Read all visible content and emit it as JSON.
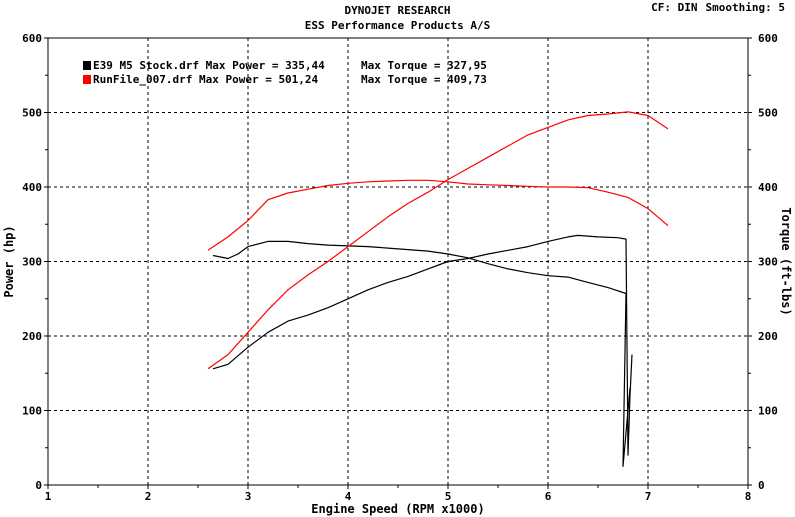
{
  "header": {
    "title": "DYNOJET RESEARCH",
    "subtitle": "ESS Performance Products A/S",
    "cf_label": "CF: DIN",
    "smoothing_label": "Smoothing: 5"
  },
  "legend": {
    "items": [
      {
        "file": "E39 M5 Stock.drf",
        "power_text": "Max Power = 335,44",
        "torque_text": "Max Torque = 327,95",
        "color": "#000000"
      },
      {
        "file": "RunFile_007.drf",
        "power_text": "Max Power = 501,24",
        "torque_text": "Max Torque = 409,73",
        "color": "#ff0000"
      }
    ]
  },
  "chart_data": {
    "type": "line",
    "xlabel": "Engine Speed (RPM x1000)",
    "ylabel_left": "Power (hp)",
    "ylabel_right": "Torque (ft-lbs)",
    "xlim": [
      1,
      8
    ],
    "ylim_left": [
      0,
      600
    ],
    "ylim_right": [
      0,
      600
    ],
    "x_ticks": [
      "1",
      "2",
      "3",
      "4",
      "5",
      "6",
      "7",
      "8"
    ],
    "y_ticks": [
      "0",
      "100",
      "200",
      "300",
      "400",
      "500",
      "600"
    ],
    "grid": true,
    "series": [
      {
        "name": "E39 M5 Stock.drf",
        "measure": "Power",
        "color": "#000000",
        "points": [
          [
            2.65,
            156
          ],
          [
            2.8,
            162
          ],
          [
            3.0,
            185
          ],
          [
            3.2,
            205
          ],
          [
            3.4,
            220
          ],
          [
            3.6,
            228
          ],
          [
            3.8,
            238
          ],
          [
            4.0,
            250
          ],
          [
            4.2,
            262
          ],
          [
            4.4,
            272
          ],
          [
            4.6,
            280
          ],
          [
            4.8,
            290
          ],
          [
            5.0,
            300
          ],
          [
            5.2,
            304
          ],
          [
            5.4,
            310
          ],
          [
            5.6,
            315
          ],
          [
            5.8,
            320
          ],
          [
            6.0,
            327
          ],
          [
            6.2,
            333
          ],
          [
            6.3,
            335
          ],
          [
            6.5,
            333
          ],
          [
            6.7,
            332
          ],
          [
            6.78,
            330
          ],
          [
            6.8,
            40
          ],
          [
            6.82,
            120
          ],
          [
            6.84,
            175
          ]
        ]
      },
      {
        "name": "E39 M5 Stock.drf",
        "measure": "Torque",
        "color": "#000000",
        "points": [
          [
            2.65,
            308
          ],
          [
            2.8,
            304
          ],
          [
            2.9,
            310
          ],
          [
            3.0,
            320
          ],
          [
            3.2,
            327
          ],
          [
            3.4,
            327
          ],
          [
            3.6,
            324
          ],
          [
            3.8,
            322
          ],
          [
            4.0,
            321
          ],
          [
            4.2,
            320
          ],
          [
            4.4,
            318
          ],
          [
            4.6,
            316
          ],
          [
            4.8,
            314
          ],
          [
            5.0,
            310
          ],
          [
            5.2,
            305
          ],
          [
            5.4,
            297
          ],
          [
            5.6,
            290
          ],
          [
            5.8,
            285
          ],
          [
            6.0,
            281
          ],
          [
            6.2,
            279
          ],
          [
            6.4,
            272
          ],
          [
            6.6,
            265
          ],
          [
            6.78,
            257
          ],
          [
            6.75,
            25
          ],
          [
            6.82,
            130
          ]
        ]
      },
      {
        "name": "RunFile_007.drf",
        "measure": "Power",
        "color": "#ff0000",
        "points": [
          [
            2.6,
            156
          ],
          [
            2.8,
            175
          ],
          [
            3.0,
            205
          ],
          [
            3.2,
            235
          ],
          [
            3.4,
            262
          ],
          [
            3.6,
            282
          ],
          [
            3.8,
            300
          ],
          [
            4.0,
            320
          ],
          [
            4.2,
            340
          ],
          [
            4.4,
            360
          ],
          [
            4.6,
            378
          ],
          [
            4.8,
            393
          ],
          [
            5.0,
            410
          ],
          [
            5.2,
            425
          ],
          [
            5.4,
            440
          ],
          [
            5.6,
            455
          ],
          [
            5.8,
            470
          ],
          [
            6.0,
            480
          ],
          [
            6.2,
            490
          ],
          [
            6.4,
            496
          ],
          [
            6.6,
            498
          ],
          [
            6.8,
            501
          ],
          [
            7.0,
            496
          ],
          [
            7.2,
            478
          ]
        ]
      },
      {
        "name": "RunFile_007.drf",
        "measure": "Torque",
        "color": "#ff0000",
        "points": [
          [
            2.6,
            315
          ],
          [
            2.8,
            333
          ],
          [
            3.0,
            355
          ],
          [
            3.2,
            383
          ],
          [
            3.4,
            392
          ],
          [
            3.6,
            397
          ],
          [
            3.8,
            402
          ],
          [
            4.0,
            405
          ],
          [
            4.2,
            407
          ],
          [
            4.4,
            408
          ],
          [
            4.6,
            409
          ],
          [
            4.8,
            409
          ],
          [
            5.0,
            407
          ],
          [
            5.2,
            404
          ],
          [
            5.4,
            403
          ],
          [
            5.6,
            402
          ],
          [
            5.8,
            401
          ],
          [
            6.0,
            400
          ],
          [
            6.2,
            400
          ],
          [
            6.4,
            399
          ],
          [
            6.6,
            393
          ],
          [
            6.8,
            386
          ],
          [
            7.0,
            371
          ],
          [
            7.2,
            348
          ]
        ]
      }
    ]
  }
}
